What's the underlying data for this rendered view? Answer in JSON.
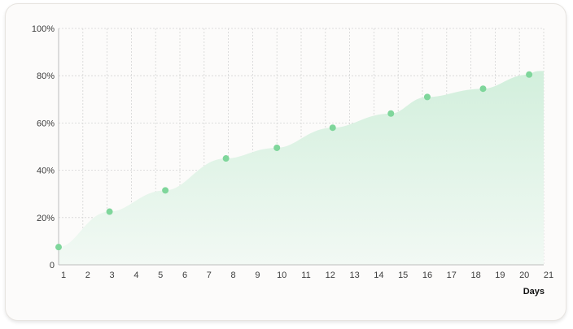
{
  "chart_data": {
    "type": "area",
    "title": "",
    "xlabel": "Days",
    "ylabel": "",
    "x_ticks": [
      "1",
      "2",
      "3",
      "4",
      "5",
      "6",
      "7",
      "8",
      "9",
      "10",
      "11",
      "12",
      "13",
      "14",
      "15",
      "16",
      "17",
      "18",
      "19",
      "20",
      "21"
    ],
    "xlim": [
      1,
      21
    ],
    "y_ticks": [
      "0",
      "20%",
      "40%",
      "60%",
      "80%",
      "100%"
    ],
    "ylim": [
      0,
      100
    ],
    "grid": true,
    "series": [
      {
        "x": [
          1,
          3.1,
          5.4,
          7.9,
          10,
          12.3,
          14.7,
          16.2,
          18.5,
          20.4
        ],
        "values": [
          7.5,
          22.5,
          31.5,
          45,
          49.5,
          58,
          64,
          71,
          74.5,
          80.5
        ]
      }
    ],
    "colors": {
      "area_top": "#d2efdc",
      "area_bottom": "#f2f9f4",
      "point": "#7fd69b",
      "grid": "#d4d4d4",
      "axis": "#bdbdbd"
    }
  }
}
